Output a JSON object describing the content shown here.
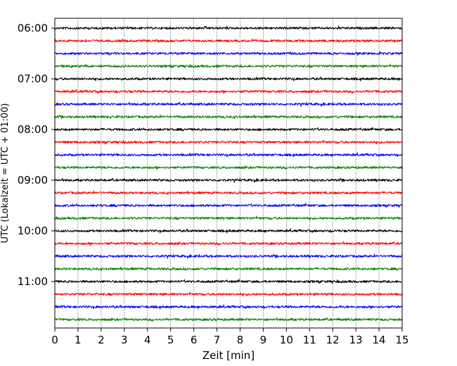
{
  "chart_data": {
    "type": "line",
    "title": "",
    "xlabel": "Zeit  [min]",
    "ylabel": "UTC (Lokalzeit = UTC + 01:00)",
    "xlim": [
      0,
      15
    ],
    "x_ticks": [
      "0",
      "1",
      "2",
      "3",
      "4",
      "5",
      "6",
      "7",
      "8",
      "9",
      "10",
      "11",
      "12",
      "13",
      "14",
      "15"
    ],
    "y_ticks": [
      "06:00",
      "07:00",
      "08:00",
      "09:00",
      "10:00",
      "11:00"
    ],
    "grid": {
      "x": true,
      "y": false,
      "style": "dotted"
    },
    "trace_colors": [
      "#000000",
      "#ff0000",
      "#0000ff",
      "#008000"
    ],
    "series": [
      {
        "start": "06:00",
        "color": "#000000"
      },
      {
        "start": "06:15",
        "color": "#ff0000"
      },
      {
        "start": "06:30",
        "color": "#0000ff"
      },
      {
        "start": "06:45",
        "color": "#008000"
      },
      {
        "start": "07:00",
        "color": "#000000"
      },
      {
        "start": "07:15",
        "color": "#ff0000"
      },
      {
        "start": "07:30",
        "color": "#0000ff"
      },
      {
        "start": "07:45",
        "color": "#008000"
      },
      {
        "start": "08:00",
        "color": "#000000"
      },
      {
        "start": "08:15",
        "color": "#ff0000"
      },
      {
        "start": "08:30",
        "color": "#0000ff"
      },
      {
        "start": "08:45",
        "color": "#008000"
      },
      {
        "start": "09:00",
        "color": "#000000"
      },
      {
        "start": "09:15",
        "color": "#ff0000"
      },
      {
        "start": "09:30",
        "color": "#0000ff"
      },
      {
        "start": "09:45",
        "color": "#008000"
      },
      {
        "start": "10:00",
        "color": "#000000"
      },
      {
        "start": "10:15",
        "color": "#ff0000"
      },
      {
        "start": "10:30",
        "color": "#0000ff"
      },
      {
        "start": "10:45",
        "color": "#008000"
      },
      {
        "start": "11:00",
        "color": "#000000"
      },
      {
        "start": "11:15",
        "color": "#ff0000"
      },
      {
        "start": "11:30",
        "color": "#0000ff"
      },
      {
        "start": "11:45",
        "color": "#008000"
      }
    ]
  }
}
